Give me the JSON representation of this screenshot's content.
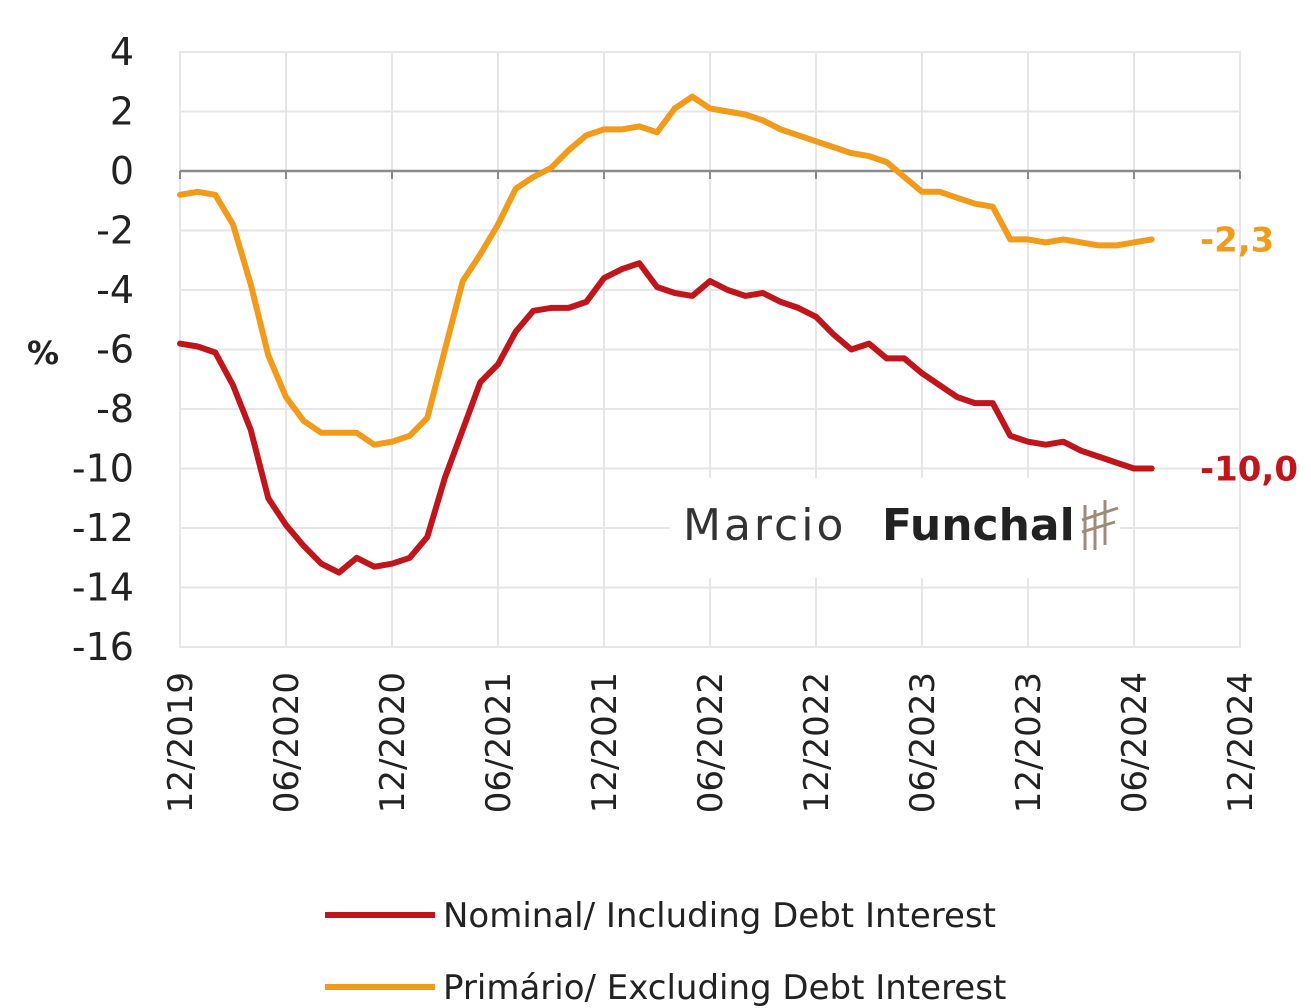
{
  "chart_data": {
    "type": "line",
    "ylabel": "%",
    "ylim": [
      -16,
      4
    ],
    "yticks": [
      "4",
      "2",
      "0",
      "-2",
      "-4",
      "-6",
      "-8",
      "-10",
      "-12",
      "-14",
      "-16"
    ],
    "xlim": [
      "2019-12",
      "2024-12"
    ],
    "xticks": [
      "12/2019",
      "06/2020",
      "12/2020",
      "06/2021",
      "12/2021",
      "06/2022",
      "12/2022",
      "06/2023",
      "12/2023",
      "06/2024",
      "12/2024"
    ],
    "x": [
      "2019-12",
      "2020-01",
      "2020-02",
      "2020-03",
      "2020-04",
      "2020-05",
      "2020-06",
      "2020-07",
      "2020-08",
      "2020-09",
      "2020-10",
      "2020-11",
      "2020-12",
      "2021-01",
      "2021-02",
      "2021-03",
      "2021-04",
      "2021-05",
      "2021-06",
      "2021-07",
      "2021-08",
      "2021-09",
      "2021-10",
      "2021-11",
      "2021-12",
      "2022-01",
      "2022-02",
      "2022-03",
      "2022-04",
      "2022-05",
      "2022-06",
      "2022-07",
      "2022-08",
      "2022-09",
      "2022-10",
      "2022-11",
      "2022-12",
      "2023-01",
      "2023-02",
      "2023-03",
      "2023-04",
      "2023-05",
      "2023-06",
      "2023-07",
      "2023-08",
      "2023-09",
      "2023-10",
      "2023-11",
      "2023-12",
      "2024-01",
      "2024-02",
      "2024-03",
      "2024-04",
      "2024-05",
      "2024-06",
      "2024-07"
    ],
    "grid": true,
    "legend_position": "bottom",
    "series": [
      {
        "name": "Nominal/ Including Debt Interest",
        "color": "#c0151b",
        "end_label": "-10,0",
        "values": [
          -5.8,
          -5.9,
          -6.1,
          -7.2,
          -8.7,
          -11.0,
          -11.9,
          -12.6,
          -13.2,
          -13.5,
          -13.0,
          -13.3,
          -13.2,
          -13.0,
          -12.3,
          -10.3,
          -8.7,
          -7.1,
          -6.5,
          -5.4,
          -4.7,
          -4.6,
          -4.6,
          -4.4,
          -3.6,
          -3.3,
          -3.1,
          -3.9,
          -4.1,
          -4.2,
          -3.7,
          -4.0,
          -4.2,
          -4.1,
          -4.4,
          -4.6,
          -4.9,
          -5.5,
          -6.0,
          -5.8,
          -6.3,
          -6.3,
          -6.8,
          -7.2,
          -7.6,
          -7.8,
          -7.8,
          -8.9,
          -9.1,
          -9.2,
          -9.1,
          -9.4,
          -9.6,
          -9.8,
          -10.0,
          -10.0
        ]
      },
      {
        "name": "Primário/ Excluding Debt Interest",
        "color": "#f29a1a",
        "end_label": "-2,3",
        "values": [
          -0.8,
          -0.7,
          -0.8,
          -1.8,
          -3.8,
          -6.2,
          -7.6,
          -8.4,
          -8.8,
          -8.8,
          -8.8,
          -9.2,
          -9.1,
          -8.9,
          -8.3,
          -6.0,
          -3.7,
          -2.8,
          -1.8,
          -0.6,
          -0.2,
          0.1,
          0.7,
          1.2,
          1.4,
          1.4,
          1.5,
          1.3,
          2.1,
          2.5,
          2.1,
          2.0,
          1.9,
          1.7,
          1.4,
          1.2,
          1.0,
          0.8,
          0.6,
          0.5,
          0.3,
          -0.2,
          -0.7,
          -0.7,
          -0.9,
          -1.1,
          -1.2,
          -2.3,
          -2.3,
          -2.4,
          -2.3,
          -2.4,
          -2.5,
          -2.5,
          -2.4,
          -2.3
        ]
      }
    ]
  },
  "watermark": {
    "first": "Marcio",
    "second": "Funchal"
  }
}
